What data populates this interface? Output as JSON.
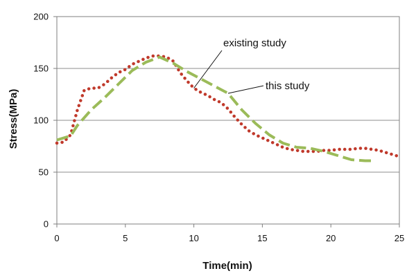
{
  "chart_data": {
    "type": "line",
    "title": "",
    "xlabel": "Time(min)",
    "ylabel": "Stress(MPa)",
    "xlim": [
      0,
      25
    ],
    "ylim": [
      0,
      200
    ],
    "xticks": [
      "0",
      "5",
      "10",
      "15",
      "20",
      "25"
    ],
    "yticks": [
      "0",
      "50",
      "100",
      "150",
      "200"
    ],
    "grid": "horizontal",
    "legend": "none",
    "series": [
      {
        "name": "existing study",
        "color": "#c0392b",
        "style": "dotted",
        "x": [
          0,
          0.5,
          1,
          1.5,
          2,
          2.5,
          3,
          3.5,
          4,
          4.5,
          5,
          5.5,
          6,
          6.5,
          7,
          7.5,
          8,
          8.5,
          9,
          9.5,
          10,
          10.5,
          11,
          11.5,
          12,
          12.5,
          13,
          13.5,
          14,
          14.5,
          15,
          15.5,
          16,
          16.5,
          17,
          17.5,
          18,
          18.5,
          19,
          19.5,
          20,
          20.5,
          21,
          21.5,
          22,
          22.5,
          23,
          23.5,
          24,
          24.5,
          25
        ],
        "y": [
          78,
          79,
          86,
          110,
          129,
          131,
          131,
          135,
          141,
          146,
          149,
          154,
          157,
          160,
          162,
          162,
          161,
          157,
          146,
          138,
          131,
          127,
          124,
          120,
          117,
          111,
          103,
          96,
          90,
          86,
          83,
          80,
          77,
          74,
          72,
          71,
          70,
          70,
          70,
          71,
          71,
          72,
          72,
          72,
          73,
          73,
          72,
          71,
          69,
          67,
          65
        ]
      },
      {
        "name": "this study",
        "color": "#9bbb59",
        "style": "dashed",
        "x": [
          0,
          1,
          1.5,
          2.5,
          3.5,
          4.5,
          5.5,
          6.5,
          7.5,
          8.5,
          9.5,
          10.5,
          11.5,
          12.5,
          13.5,
          14.5,
          15.5,
          16.5,
          17.5,
          18.5,
          19.5,
          20.5,
          21.5,
          22.5,
          23
        ],
        "y": [
          81,
          85,
          95,
          110,
          122,
          135,
          148,
          156,
          161,
          155,
          147,
          140,
          133,
          126,
          110,
          97,
          86,
          78,
          74,
          73,
          70,
          66,
          62,
          61,
          61
        ]
      }
    ],
    "annotations": [
      {
        "text": "existing study",
        "target_series": "existing study",
        "at_x": 10
      },
      {
        "text": "this study",
        "target_series": "this study",
        "at_x": 12.5
      }
    ]
  }
}
